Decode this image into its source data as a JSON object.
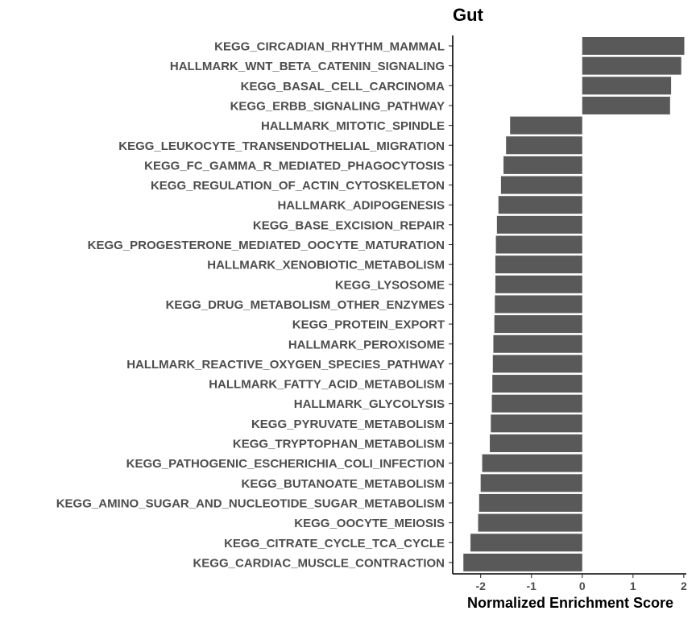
{
  "chart_data": {
    "type": "bar",
    "orientation": "horizontal",
    "title": "Gut",
    "xlabel": "Normalized Enrichment Score",
    "ylabel": "",
    "xlim": [
      -2.55,
      2.05
    ],
    "xticks": [
      -2,
      -1,
      0,
      1,
      2
    ],
    "xtick_labels": [
      "-2",
      "-1",
      "0",
      "1",
      "2"
    ],
    "grid": false,
    "bar_color": "#595959",
    "categories": [
      "KEGG_CIRCADIAN_RHYTHM_MAMMAL",
      "HALLMARK_WNT_BETA_CATENIN_SIGNALING",
      "KEGG_BASAL_CELL_CARCINOMA",
      "KEGG_ERBB_SIGNALING_PATHWAY",
      "HALLMARK_MITOTIC_SPINDLE",
      "KEGG_LEUKOCYTE_TRANSENDOTHELIAL_MIGRATION",
      "KEGG_FC_GAMMA_R_MEDIATED_PHAGOCYTOSIS",
      "KEGG_REGULATION_OF_ACTIN_CYTOSKELETON",
      "HALLMARK_ADIPOGENESIS",
      "KEGG_BASE_EXCISION_REPAIR",
      "KEGG_PROGESTERONE_MEDIATED_OOCYTE_MATURATION",
      "HALLMARK_XENOBIOTIC_METABOLISM",
      "KEGG_LYSOSOME",
      "KEGG_DRUG_METABOLISM_OTHER_ENZYMES",
      "KEGG_PROTEIN_EXPORT",
      "HALLMARK_PEROXISOME",
      "HALLMARK_REACTIVE_OXYGEN_SPECIES_PATHWAY",
      "HALLMARK_FATTY_ACID_METABOLISM",
      "HALLMARK_GLYCOLYSIS",
      "KEGG_PYRUVATE_METABOLISM",
      "KEGG_TRYPTOPHAN_METABOLISM",
      "KEGG_PATHOGENIC_ESCHERICHIA_COLI_INFECTION",
      "KEGG_BUTANOATE_METABOLISM",
      "KEGG_AMINO_SUGAR_AND_NUCLEOTIDE_SUGAR_METABOLISM",
      "KEGG_OOCYTE_MEIOSIS",
      "KEGG_CITRATE_CYCLE_TCA_CYCLE",
      "KEGG_CARDIAC_MUSCLE_CONTRACTION"
    ],
    "values": [
      2.01,
      1.95,
      1.75,
      1.73,
      -1.42,
      -1.5,
      -1.55,
      -1.6,
      -1.65,
      -1.68,
      -1.7,
      -1.71,
      -1.71,
      -1.72,
      -1.73,
      -1.75,
      -1.76,
      -1.77,
      -1.78,
      -1.8,
      -1.82,
      -1.97,
      -2.0,
      -2.03,
      -2.05,
      -2.2,
      -2.34
    ]
  }
}
